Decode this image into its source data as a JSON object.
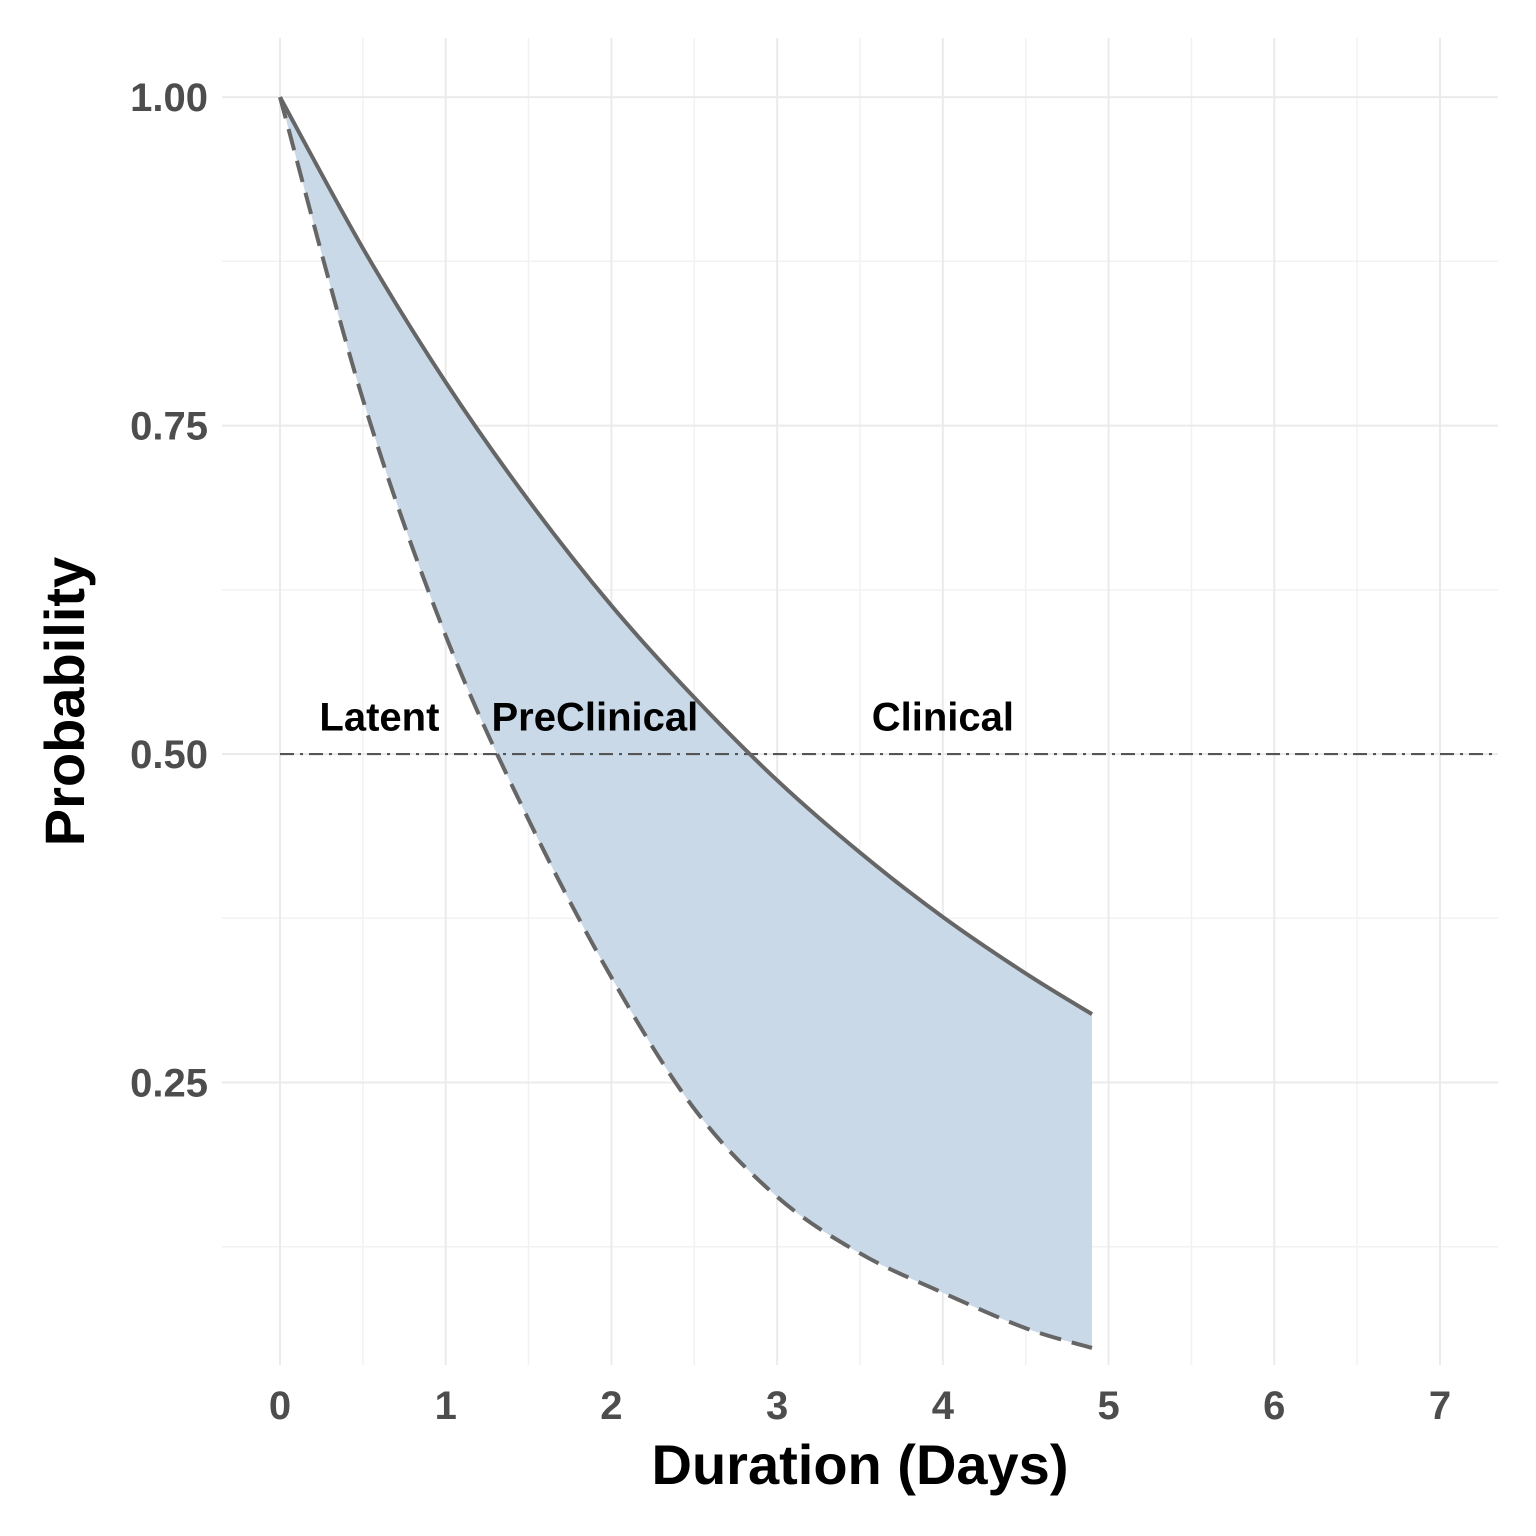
{
  "chart_data": {
    "type": "area",
    "title": "",
    "xlabel": "Duration (Days)",
    "ylabel": "Probability",
    "xlim": [
      -0.35,
      7.35
    ],
    "ylim": [
      0.035,
      1.045
    ],
    "x_ticks": [
      0,
      1,
      2,
      3,
      4,
      5,
      6,
      7
    ],
    "x_tick_labels": [
      "0",
      "1",
      "2",
      "3",
      "4",
      "5",
      "6",
      "7"
    ],
    "y_ticks": [
      0.25,
      0.5,
      0.75,
      1.0
    ],
    "y_tick_labels": [
      "0.25",
      "0.50",
      "0.75",
      "1.00"
    ],
    "grid": true,
    "series": [
      {
        "line_style": "solid",
        "x": [
          0,
          0.5,
          1,
          1.5,
          2,
          2.5,
          3,
          3.5,
          4,
          4.5,
          4.9
        ],
        "y": [
          1.0,
          0.885,
          0.783,
          0.693,
          0.613,
          0.543,
          0.48,
          0.425,
          0.376,
          0.333,
          0.302
        ]
      },
      {
        "line_style": "dashed",
        "x": [
          0,
          0.5,
          1,
          1.5,
          2,
          2.5,
          3,
          3.5,
          4,
          4.5,
          4.9
        ],
        "y": [
          1.0,
          0.77,
          0.59,
          0.45,
          0.33,
          0.23,
          0.163,
          0.12,
          0.09,
          0.063,
          0.048
        ]
      }
    ],
    "band": {
      "between": [
        "solid",
        "dashed"
      ],
      "fill": "#c9d9e8"
    },
    "reference_line": {
      "y": 0.5,
      "style": "dotdash"
    },
    "annotations": [
      {
        "text": "Latent",
        "x": 0.6,
        "y": 0.518
      },
      {
        "text": "PreClinical",
        "x": 1.9,
        "y": 0.518
      },
      {
        "text": "Clinical",
        "x": 4.0,
        "y": 0.518
      }
    ],
    "colors": {
      "line": "#666666",
      "band": "#c9d9e8",
      "grid": "#ebebeb"
    }
  }
}
